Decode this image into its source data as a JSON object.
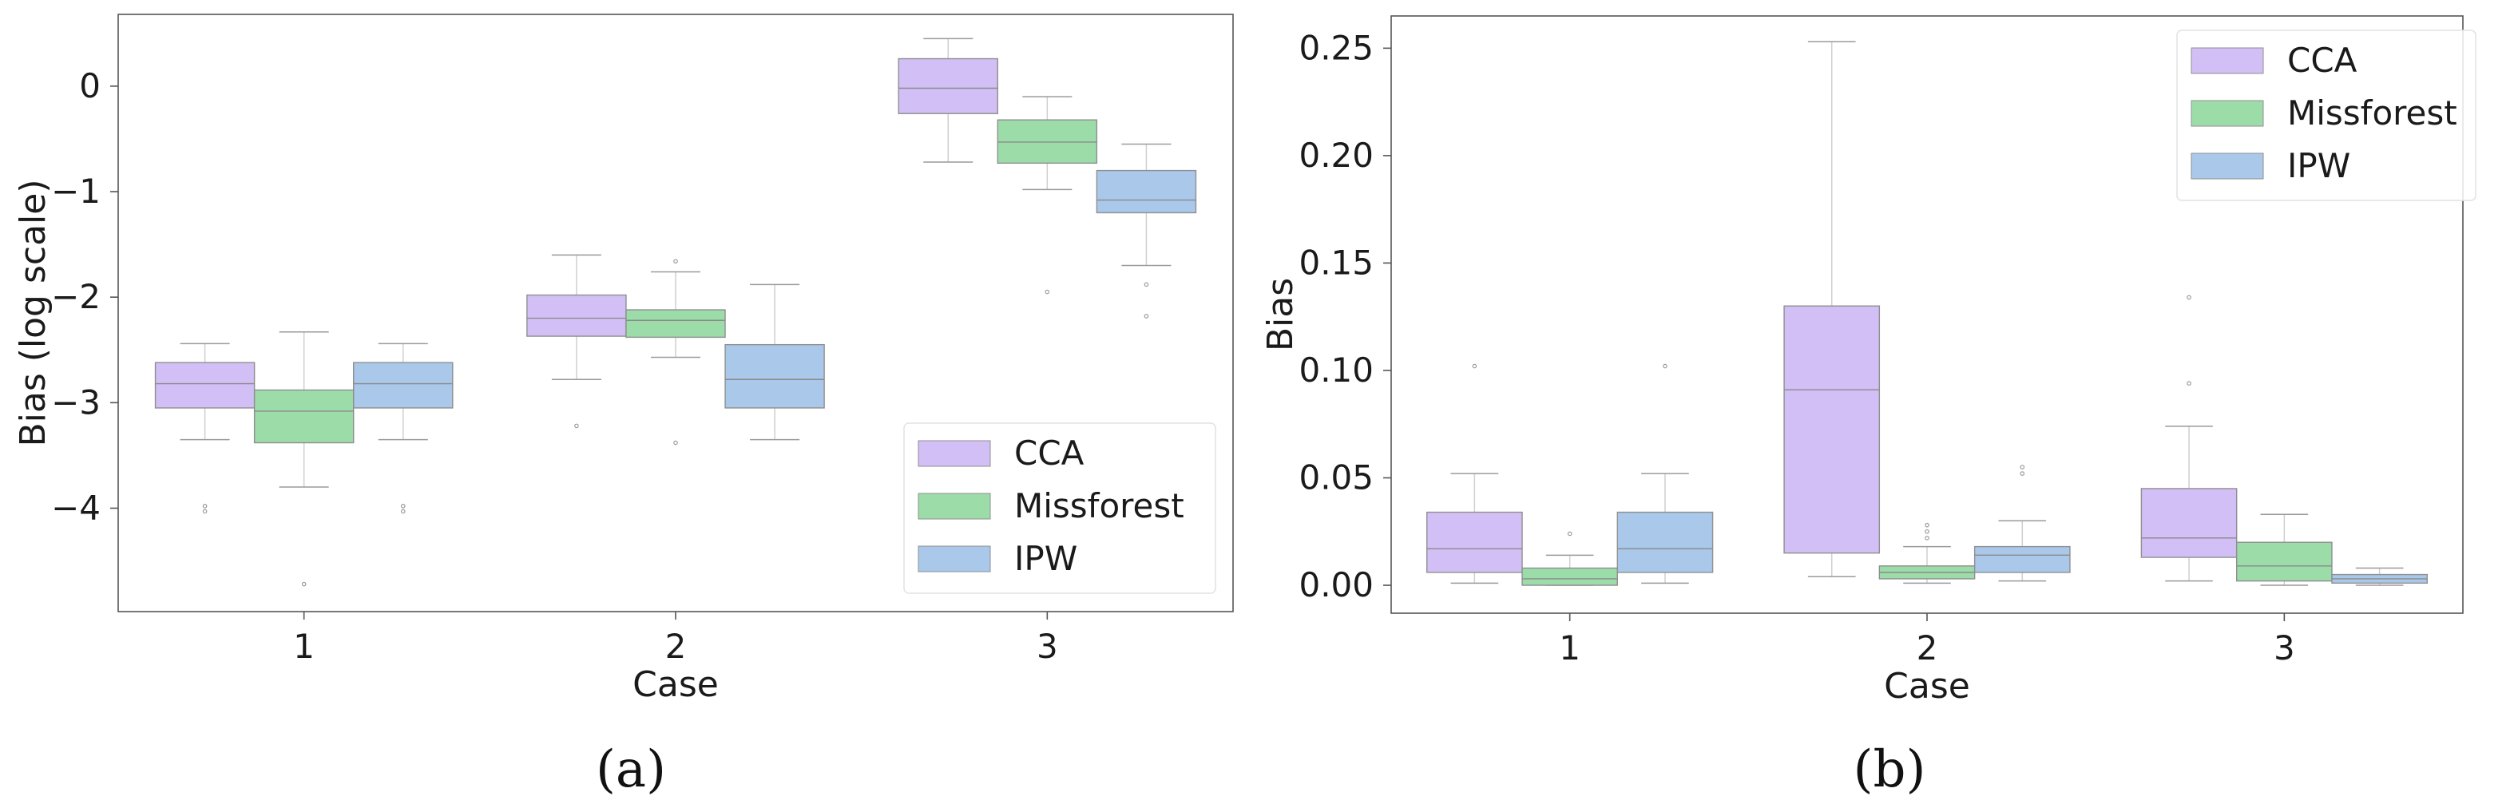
{
  "chart_data": [
    {
      "type": "box",
      "panel_label": "(a)",
      "xlabel": "Case",
      "ylabel": "Bias (log scale)",
      "categories": [
        "1",
        "2",
        "3"
      ],
      "yticks": [
        0,
        -1,
        -2,
        -3,
        -4
      ],
      "ylim": [
        -4.98,
        0.68
      ],
      "legend_position": "lower-right",
      "series": [
        {
          "name": "CCA",
          "color": "#d2bff5",
          "boxes": [
            {
              "case": "1",
              "whislo": -3.35,
              "q1": -3.05,
              "med": -2.82,
              "q3": -2.62,
              "whishi": -2.44,
              "fliers": [
                -3.98,
                -4.03
              ]
            },
            {
              "case": "2",
              "whislo": -2.78,
              "q1": -2.37,
              "med": -2.2,
              "q3": -1.98,
              "whishi": -1.6,
              "fliers": [
                -3.22
              ]
            },
            {
              "case": "3",
              "whislo": -0.72,
              "q1": -0.26,
              "med": -0.02,
              "q3": 0.26,
              "whishi": 0.45,
              "fliers": []
            }
          ]
        },
        {
          "name": "Missforest",
          "color": "#9cdca9",
          "boxes": [
            {
              "case": "1",
              "whislo": -3.8,
              "q1": -3.38,
              "med": -3.08,
              "q3": -2.88,
              "whishi": -2.33,
              "fliers": [
                -4.72
              ]
            },
            {
              "case": "2",
              "whislo": -2.57,
              "q1": -2.38,
              "med": -2.22,
              "q3": -2.12,
              "whishi": -1.76,
              "fliers": [
                -1.66,
                -3.38
              ]
            },
            {
              "case": "3",
              "whislo": -0.98,
              "q1": -0.73,
              "med": -0.53,
              "q3": -0.32,
              "whishi": -0.1,
              "fliers": [
                -1.95
              ]
            }
          ]
        },
        {
          "name": "IPW",
          "color": "#a9c8ea",
          "boxes": [
            {
              "case": "1",
              "whislo": -3.35,
              "q1": -3.05,
              "med": -2.82,
              "q3": -2.62,
              "whishi": -2.44,
              "fliers": [
                -3.98,
                -4.03
              ]
            },
            {
              "case": "2",
              "whislo": -3.35,
              "q1": -3.05,
              "med": -2.78,
              "q3": -2.45,
              "whishi": -1.88,
              "fliers": []
            },
            {
              "case": "3",
              "whislo": -1.7,
              "q1": -1.2,
              "med": -1.08,
              "q3": -0.8,
              "whishi": -0.55,
              "fliers": [
                -1.88,
                -2.18
              ]
            }
          ]
        }
      ]
    },
    {
      "type": "box",
      "panel_label": "(b)",
      "xlabel": "Case",
      "ylabel": "Bias",
      "categories": [
        "1",
        "2",
        "3"
      ],
      "yticks": [
        0.0,
        0.05,
        0.1,
        0.15,
        0.2,
        0.25
      ],
      "ytick_labels": [
        "0.00",
        "0.05",
        "0.10",
        "0.15",
        "0.20",
        "0.25"
      ],
      "ylim": [
        -0.013,
        0.265
      ],
      "legend_position": "upper-right",
      "series": [
        {
          "name": "CCA",
          "color": "#d2bff5",
          "boxes": [
            {
              "case": "1",
              "whislo": 0.001,
              "q1": 0.006,
              "med": 0.017,
              "q3": 0.034,
              "whishi": 0.052,
              "fliers": [
                0.102
              ]
            },
            {
              "case": "2",
              "whislo": 0.004,
              "q1": 0.015,
              "med": 0.091,
              "q3": 0.13,
              "whishi": 0.253,
              "fliers": []
            },
            {
              "case": "3",
              "whislo": 0.002,
              "q1": 0.013,
              "med": 0.022,
              "q3": 0.045,
              "whishi": 0.074,
              "fliers": [
                0.094,
                0.134
              ]
            }
          ]
        },
        {
          "name": "Missforest",
          "color": "#9cdca9",
          "boxes": [
            {
              "case": "1",
              "whislo": 0.0,
              "q1": 0.0,
              "med": 0.003,
              "q3": 0.008,
              "whishi": 0.014,
              "fliers": [
                0.024
              ]
            },
            {
              "case": "2",
              "whislo": 0.001,
              "q1": 0.003,
              "med": 0.006,
              "q3": 0.009,
              "whishi": 0.018,
              "fliers": [
                0.022,
                0.025,
                0.028
              ]
            },
            {
              "case": "3",
              "whislo": 0.0,
              "q1": 0.002,
              "med": 0.009,
              "q3": 0.02,
              "whishi": 0.033,
              "fliers": []
            }
          ]
        },
        {
          "name": "IPW",
          "color": "#a9c8ea",
          "boxes": [
            {
              "case": "1",
              "whislo": 0.001,
              "q1": 0.006,
              "med": 0.017,
              "q3": 0.034,
              "whishi": 0.052,
              "fliers": [
                0.102
              ]
            },
            {
              "case": "2",
              "whislo": 0.002,
              "q1": 0.006,
              "med": 0.014,
              "q3": 0.018,
              "whishi": 0.03,
              "fliers": [
                0.052,
                0.055
              ]
            },
            {
              "case": "3",
              "whislo": 0.0,
              "q1": 0.001,
              "med": 0.003,
              "q3": 0.005,
              "whishi": 0.008,
              "fliers": []
            }
          ]
        }
      ]
    }
  ]
}
